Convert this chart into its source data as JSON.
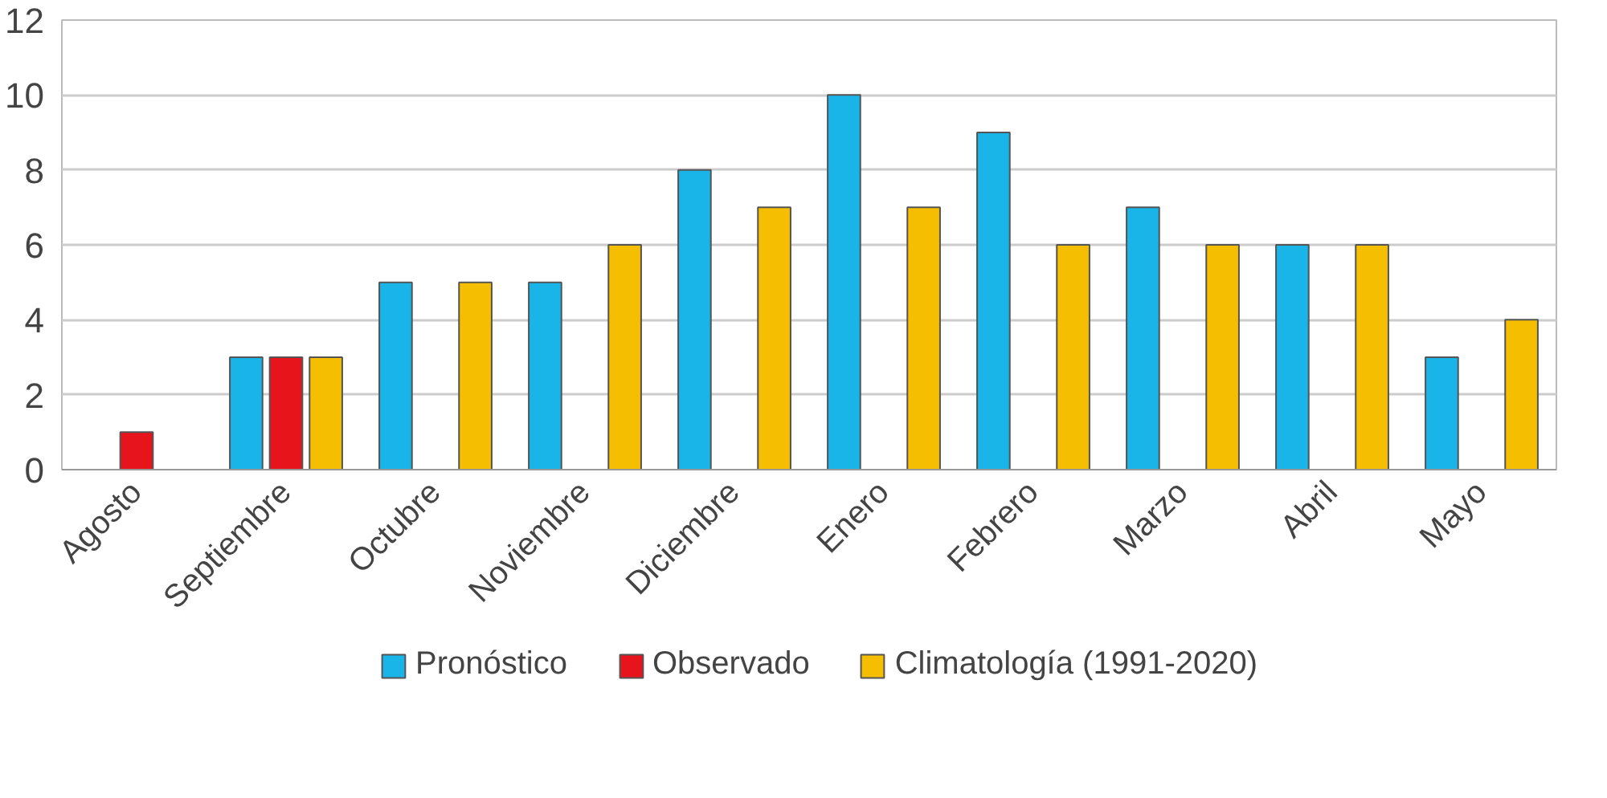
{
  "chart_data": {
    "type": "bar",
    "categories": [
      "Agosto",
      "Septiembre",
      "Octubre",
      "Noviembre",
      "Diciembre",
      "Enero",
      "Febrero",
      "Marzo",
      "Abril",
      "Mayo"
    ],
    "series": [
      {
        "name": "Pronóstico",
        "color": "#19b4e8",
        "values": [
          null,
          3,
          5,
          5,
          8,
          10,
          9,
          7,
          6,
          3
        ]
      },
      {
        "name": "Observado",
        "color": "#e8141c",
        "values": [
          1,
          3,
          null,
          null,
          null,
          null,
          null,
          null,
          null,
          null
        ]
      },
      {
        "name": "Climatología (1991-2020)",
        "color": "#f5be00",
        "values": [
          null,
          3,
          5,
          6,
          7,
          7,
          6,
          6,
          6,
          4
        ]
      }
    ],
    "ylim": [
      0,
      12
    ],
    "yticks": [
      0,
      2,
      4,
      6,
      8,
      10,
      12
    ],
    "grid": "y",
    "legend": "bottom"
  }
}
